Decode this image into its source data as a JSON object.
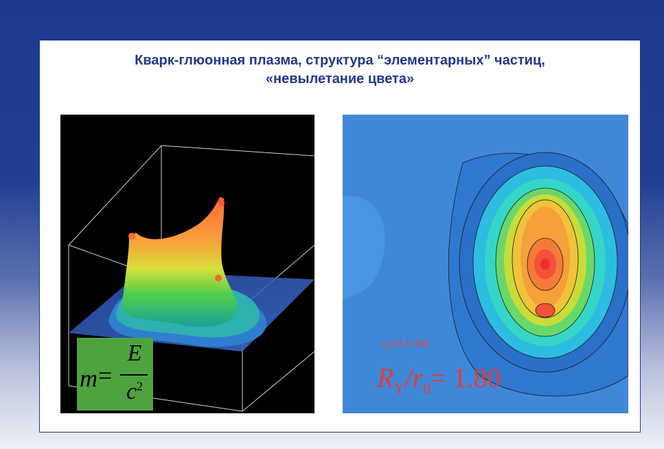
{
  "title": {
    "line1": "Кварк-глюонная плазма, структура “элементарных” частиц,",
    "line2": "«невылетание цвета»"
  },
  "formula": {
    "lhs": "m",
    "eq": "=",
    "numerator": "E",
    "denominator": "c",
    "power": "2"
  },
  "contour_plot": {
    "r0_label": "r",
    "r0_sub": "0",
    "r0_value": "=0.5 Фм",
    "ratio_R": "R",
    "ratio_sub1": "Y",
    "ratio_slash": "/r",
    "ratio_sub2": "0",
    "ratio_value": "= 1.80"
  },
  "colors": {
    "title": "#24358f",
    "formula_bg": "#4fa33f",
    "label_red": "#e83a3a"
  }
}
